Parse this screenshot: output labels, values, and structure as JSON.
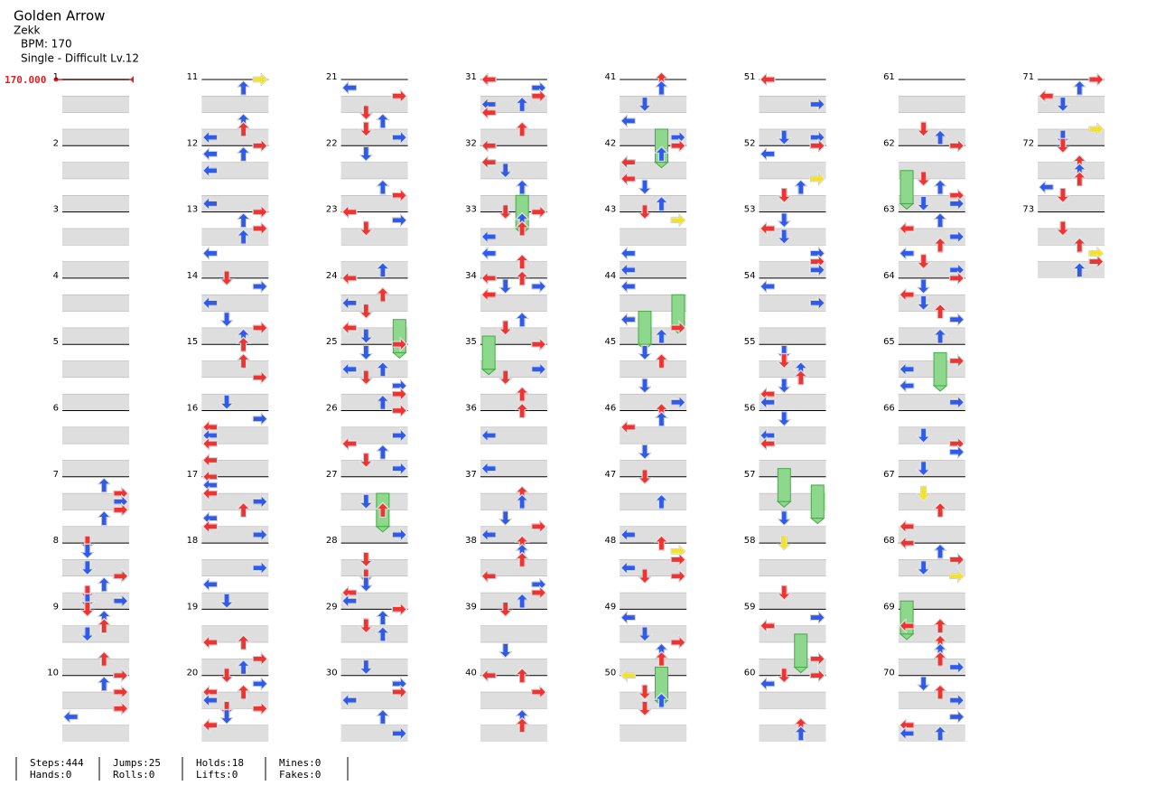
{
  "header": {
    "title": "Golden Arrow",
    "artist": "Zekk",
    "bpm": "BPM: 170",
    "difficulty": "Single - Difficult Lv.12"
  },
  "bpm_marker": "170.000",
  "measures": [
    1,
    2,
    3,
    4,
    5,
    6,
    7,
    8,
    9,
    10,
    11,
    12,
    13,
    14,
    15,
    16,
    17,
    18,
    19,
    20,
    21,
    22,
    23,
    24,
    25,
    26,
    27,
    28,
    29,
    30,
    31,
    32,
    33,
    34,
    35,
    36,
    37,
    38,
    39,
    40,
    41,
    42,
    43,
    44,
    45,
    46,
    47,
    48,
    49,
    50,
    51,
    52,
    53,
    54,
    55,
    56,
    57,
    58,
    59,
    60,
    61,
    62,
    63,
    64,
    65,
    66,
    67,
    68,
    69,
    70,
    71,
    72,
    73
  ],
  "stats": [
    [
      "Steps:444",
      "Hands:0"
    ],
    [
      "Jumps:25",
      "Rolls:0"
    ],
    [
      "Holds:18",
      "Lifts:0"
    ],
    [
      "Mines:0",
      "Fakes:0"
    ]
  ]
}
